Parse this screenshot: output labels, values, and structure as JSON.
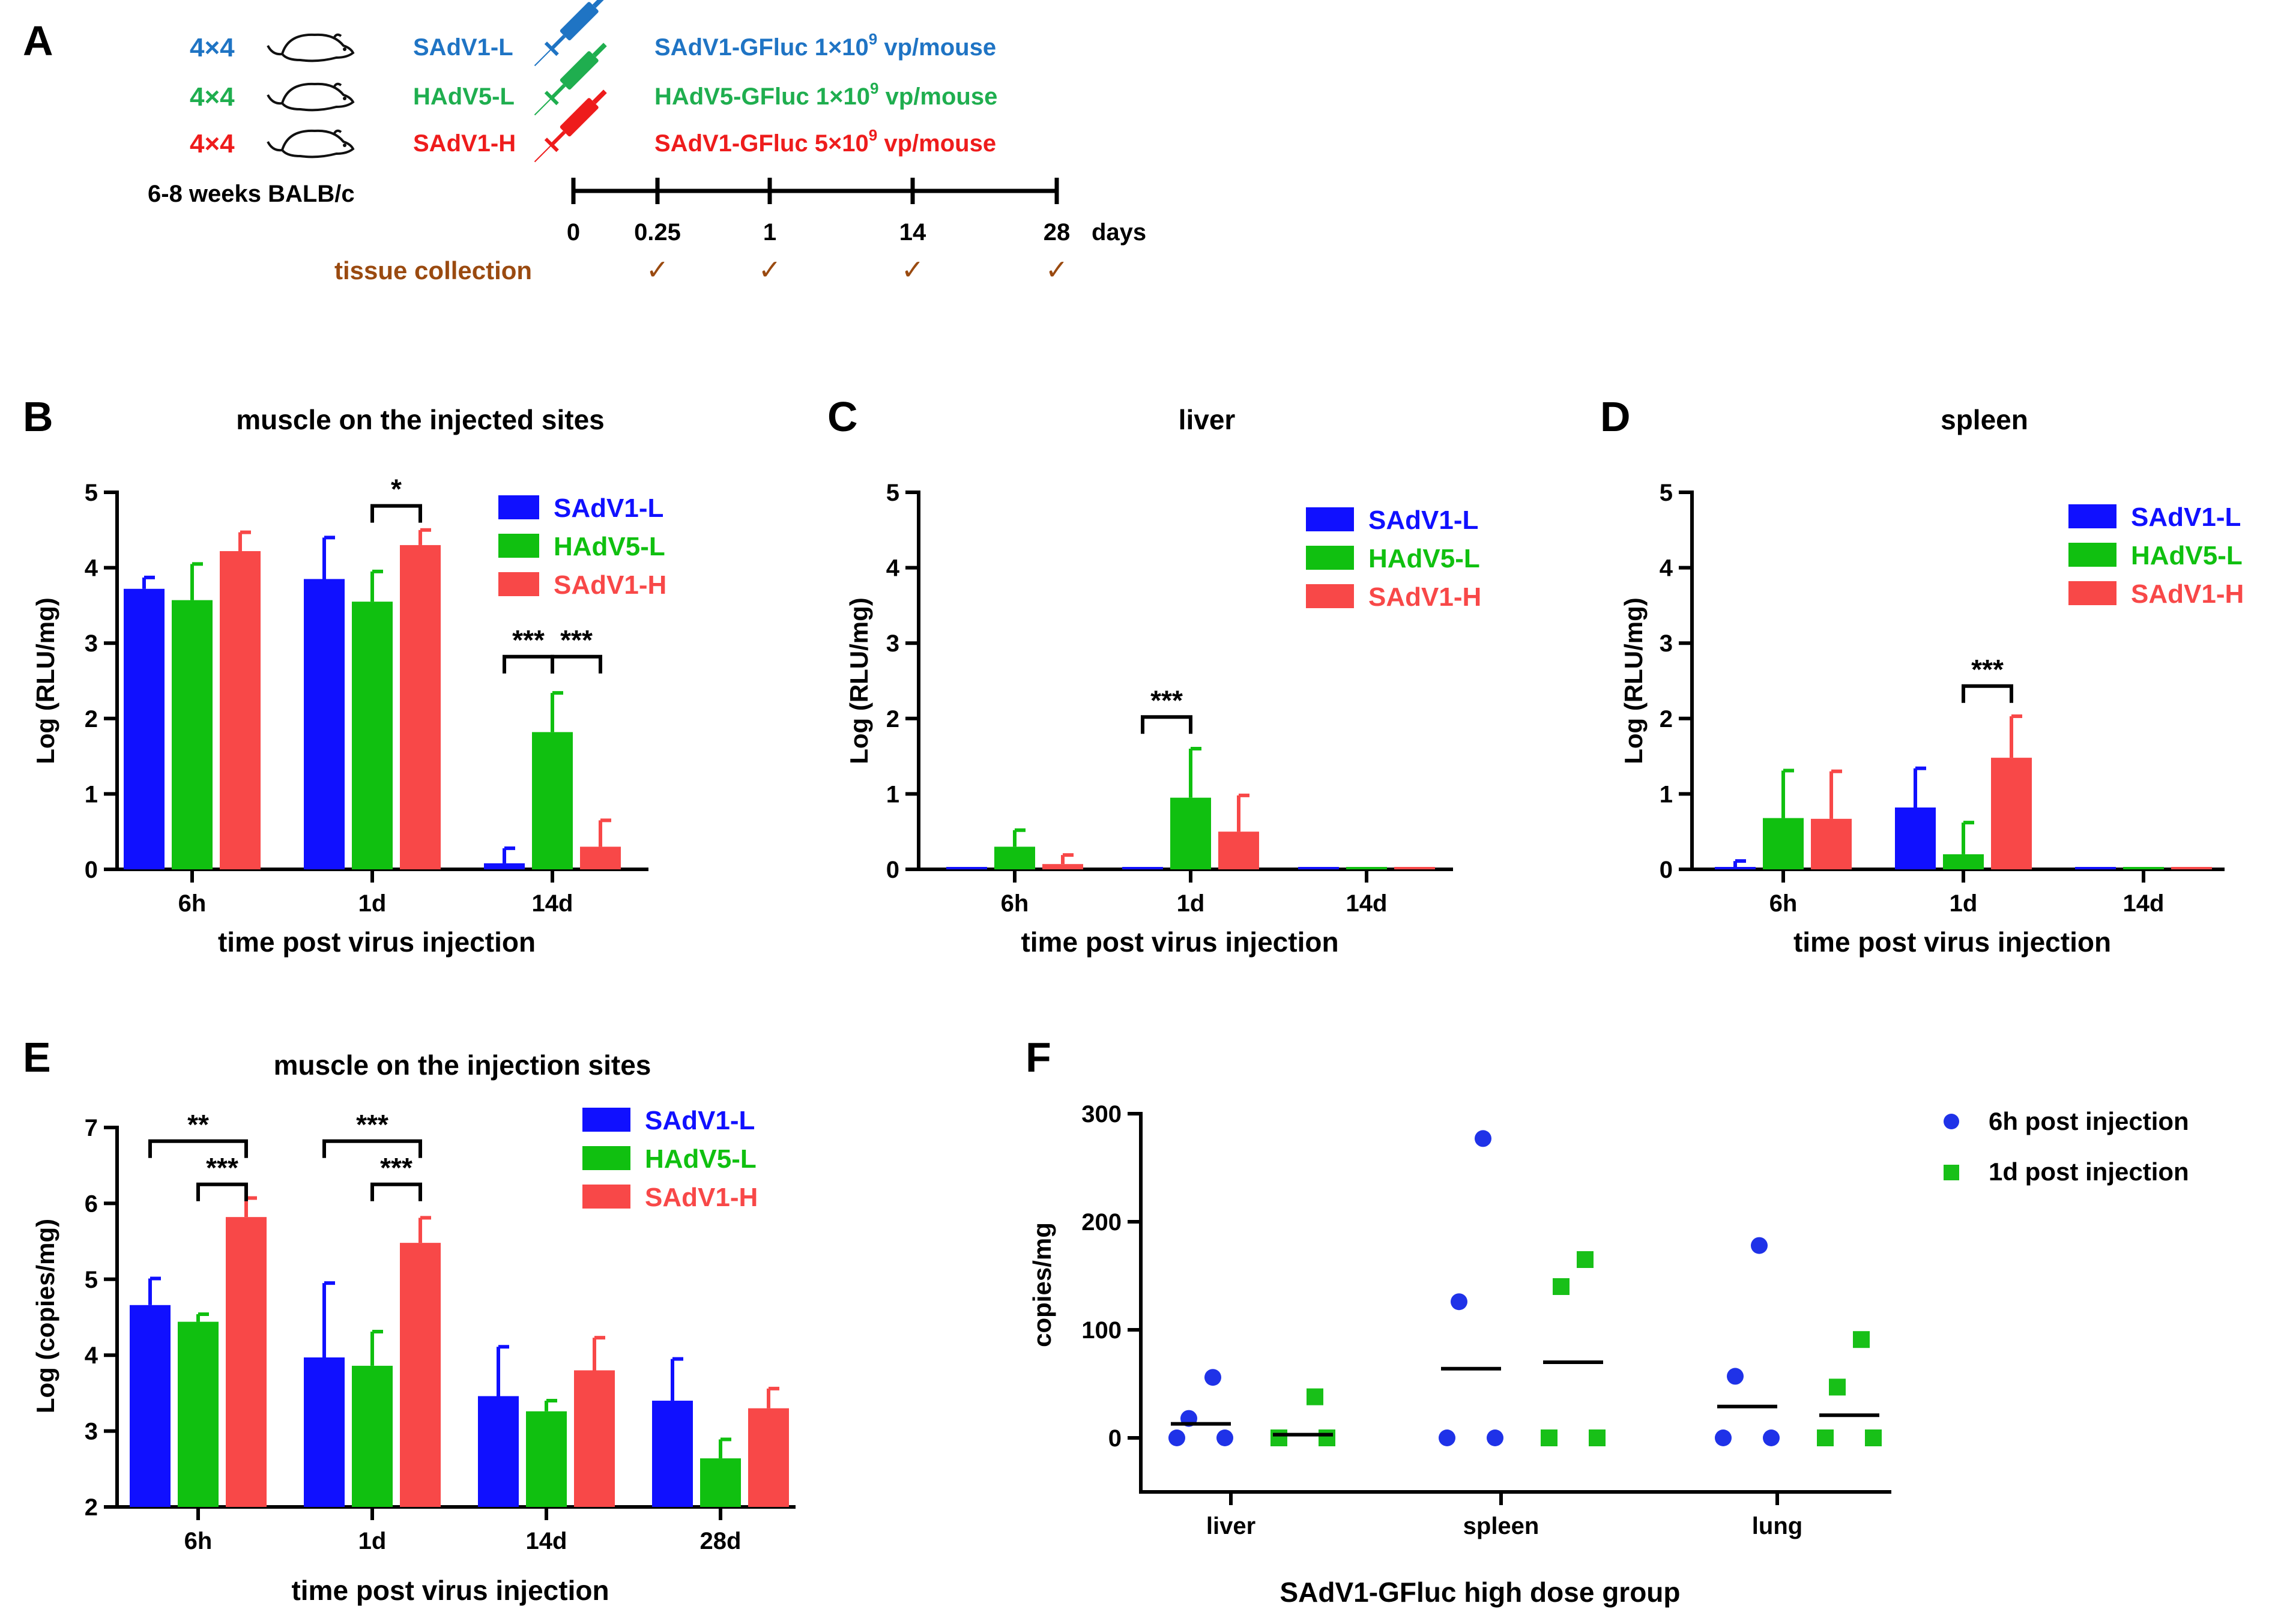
{
  "panel_labels": [
    "A",
    "B",
    "C",
    "D",
    "E",
    "F"
  ],
  "colors": {
    "blue": "#1010ff",
    "green": "#10c010",
    "red": "#f84848",
    "a_blue": "#1f74c4",
    "a_green": "#1fae4f",
    "a_red": "#ee1c1c",
    "brown": "#9a4a10",
    "axis": "#000000",
    "f_blue": "#1f32e8",
    "f_green": "#18c018"
  },
  "scheme": {
    "groups": [
      {
        "count": "4×4",
        "name": "SAdV1-L",
        "dose": "SAdV1-GFluc 1×10",
        "exp": "9",
        "unit": " vp/mouse",
        "color": "#1f74c4"
      },
      {
        "count": "4×4",
        "name": "HAdV5-L",
        "dose": "HAdV5-GFluc 1×10",
        "exp": "9",
        "unit": " vp/mouse",
        "color": "#1fae4f"
      },
      {
        "count": "4×4",
        "name": "SAdV1-H",
        "dose": "SAdV1-GFluc 5×10",
        "exp": "9",
        "unit": " vp/mouse",
        "color": "#ee1c1c"
      }
    ],
    "strain": "6-8 weeks BALB/c",
    "timeline_ticks": [
      "0",
      "0.25",
      "1",
      "14",
      "28"
    ],
    "timeline_values": [
      0,
      0.25,
      1,
      14,
      28
    ],
    "days_label": "days",
    "tissue_collection": "tissue collection",
    "check": "✓"
  },
  "chart_data": [
    {
      "id": "B",
      "type": "bar",
      "title": "muscle on the injected sites",
      "xlabel": "time post virus injection",
      "ylabel": "Log (RLU/mg)",
      "ylim": [
        0,
        5
      ],
      "yticks": [
        0,
        1,
        2,
        3,
        4,
        5
      ],
      "yticklabels": [
        "0",
        "1",
        "2",
        "3",
        "4",
        "5"
      ],
      "categories": [
        "6h",
        "1d",
        "14d"
      ],
      "series": [
        {
          "name": "SAdV1-L",
          "values": [
            3.72,
            3.85,
            0.08
          ],
          "errors": [
            0.15,
            0.55,
            0.2
          ]
        },
        {
          "name": "HAdV5-L",
          "values": [
            3.57,
            3.55,
            1.82
          ],
          "errors": [
            0.48,
            0.4,
            0.52
          ]
        },
        {
          "name": "SAdV1-H",
          "values": [
            4.22,
            4.3,
            0.3
          ],
          "errors": [
            0.25,
            0.2,
            0.35
          ]
        }
      ],
      "legend": "top-right",
      "significance": [
        {
          "category": 1,
          "from": 1,
          "to": 2,
          "y": 4.82,
          "label": "*"
        },
        {
          "category": 2,
          "from": 0,
          "to": 1,
          "y": 2.82,
          "label": "***"
        },
        {
          "category": 2,
          "from": 1,
          "to": 2,
          "y": 2.82,
          "label": "***"
        }
      ]
    },
    {
      "id": "C",
      "type": "bar",
      "title": "liver",
      "xlabel": "time post virus injection",
      "ylabel": "Log (RLU/mg)",
      "ylim": [
        0,
        5
      ],
      "yticks": [
        0,
        1,
        2,
        3,
        4,
        5
      ],
      "yticklabels": [
        "0",
        "1",
        "2",
        "3",
        "4",
        "5"
      ],
      "categories": [
        "6h",
        "1d",
        "14d"
      ],
      "series": [
        {
          "name": "SAdV1-L",
          "values": [
            0.03,
            0.02,
            0.01
          ],
          "errors": [
            0,
            0,
            0
          ]
        },
        {
          "name": "HAdV5-L",
          "values": [
            0.3,
            0.95,
            0.01
          ],
          "errors": [
            0.22,
            0.65,
            0
          ]
        },
        {
          "name": "SAdV1-H",
          "values": [
            0.07,
            0.5,
            0.01
          ],
          "errors": [
            0.12,
            0.48,
            0
          ]
        }
      ],
      "legend": "top-right",
      "significance": [
        {
          "category": 1,
          "from": 0,
          "to": 1,
          "y": 2.02,
          "label": "***"
        }
      ]
    },
    {
      "id": "D",
      "type": "bar",
      "title": "spleen",
      "xlabel": "time post virus injection",
      "ylabel": "Log (RLU/mg)",
      "ylim": [
        0,
        5
      ],
      "yticks": [
        0,
        1,
        2,
        3,
        4,
        5
      ],
      "yticklabels": [
        "0",
        "1",
        "2",
        "3",
        "4",
        "5"
      ],
      "categories": [
        "6h",
        "1d",
        "14d"
      ],
      "series": [
        {
          "name": "SAdV1-L",
          "values": [
            0.03,
            0.82,
            0.01
          ],
          "errors": [
            0.08,
            0.52,
            0
          ]
        },
        {
          "name": "HAdV5-L",
          "values": [
            0.68,
            0.2,
            0.01
          ],
          "errors": [
            0.63,
            0.42,
            0
          ]
        },
        {
          "name": "SAdV1-H",
          "values": [
            0.67,
            1.48,
            0.01
          ],
          "errors": [
            0.63,
            0.55,
            0
          ]
        }
      ],
      "legend": "top-right",
      "significance": [
        {
          "category": 1,
          "from": 1,
          "to": 2,
          "y": 2.43,
          "label": "***"
        }
      ]
    },
    {
      "id": "E",
      "type": "bar",
      "title": "muscle on the injection sites",
      "xlabel": "time post virus injection",
      "ylabel": "Log (copies/mg)",
      "ylim": [
        2,
        7
      ],
      "yticks": [
        2,
        3,
        4,
        5,
        6,
        7
      ],
      "yticklabels": [
        "2",
        "3",
        "4",
        "5",
        "6",
        "7"
      ],
      "categories": [
        "6h",
        "1d",
        "14d",
        "28d"
      ],
      "series": [
        {
          "name": "SAdV1-L",
          "values": [
            4.66,
            3.97,
            3.46,
            3.4
          ],
          "errors": [
            0.35,
            0.98,
            0.65,
            0.55
          ]
        },
        {
          "name": "HAdV5-L",
          "values": [
            4.44,
            3.86,
            3.26,
            2.64
          ],
          "errors": [
            0.1,
            0.45,
            0.14,
            0.25
          ]
        },
        {
          "name": "SAdV1-H",
          "values": [
            5.82,
            5.48,
            3.8,
            3.3
          ],
          "errors": [
            0.25,
            0.33,
            0.43,
            0.26
          ]
        }
      ],
      "legend": "top-right",
      "significance": [
        {
          "category": 0,
          "from": 0,
          "to": 2,
          "y": 6.82,
          "label": "**"
        },
        {
          "category": 0,
          "from": 1,
          "to": 2,
          "y": 6.25,
          "label": "***"
        },
        {
          "category": 1,
          "from": 0,
          "to": 2,
          "y": 6.82,
          "label": "***"
        },
        {
          "category": 1,
          "from": 1,
          "to": 2,
          "y": 6.25,
          "label": "***"
        }
      ]
    },
    {
      "id": "F",
      "type": "scatter",
      "title": "",
      "xlabel": "SAdV1-GFluc high dose group",
      "ylabel": "copies/mg",
      "ylim": [
        -50,
        300
      ],
      "yticks": [
        0,
        100,
        200,
        300
      ],
      "yticklabels": [
        "0",
        "100",
        "200",
        "300"
      ],
      "categories": [
        "liver",
        "spleen",
        "lung"
      ],
      "series": [
        {
          "name": "6h post injection",
          "marker": "circle",
          "points": [
            [
              56,
              18,
              0,
              0
            ],
            [
              277,
              126,
              0,
              0
            ],
            [
              178,
              57,
              0,
              0
            ]
          ],
          "medians": [
            13,
            64,
            29
          ]
        },
        {
          "name": "1d post injection",
          "marker": "square",
          "points": [
            [
              38,
              0,
              0,
              0
            ],
            [
              165,
              140,
              0,
              0
            ],
            [
              91,
              47,
              0,
              0
            ]
          ],
          "medians": [
            3,
            70,
            21
          ]
        }
      ],
      "legend": "top-right"
    }
  ]
}
